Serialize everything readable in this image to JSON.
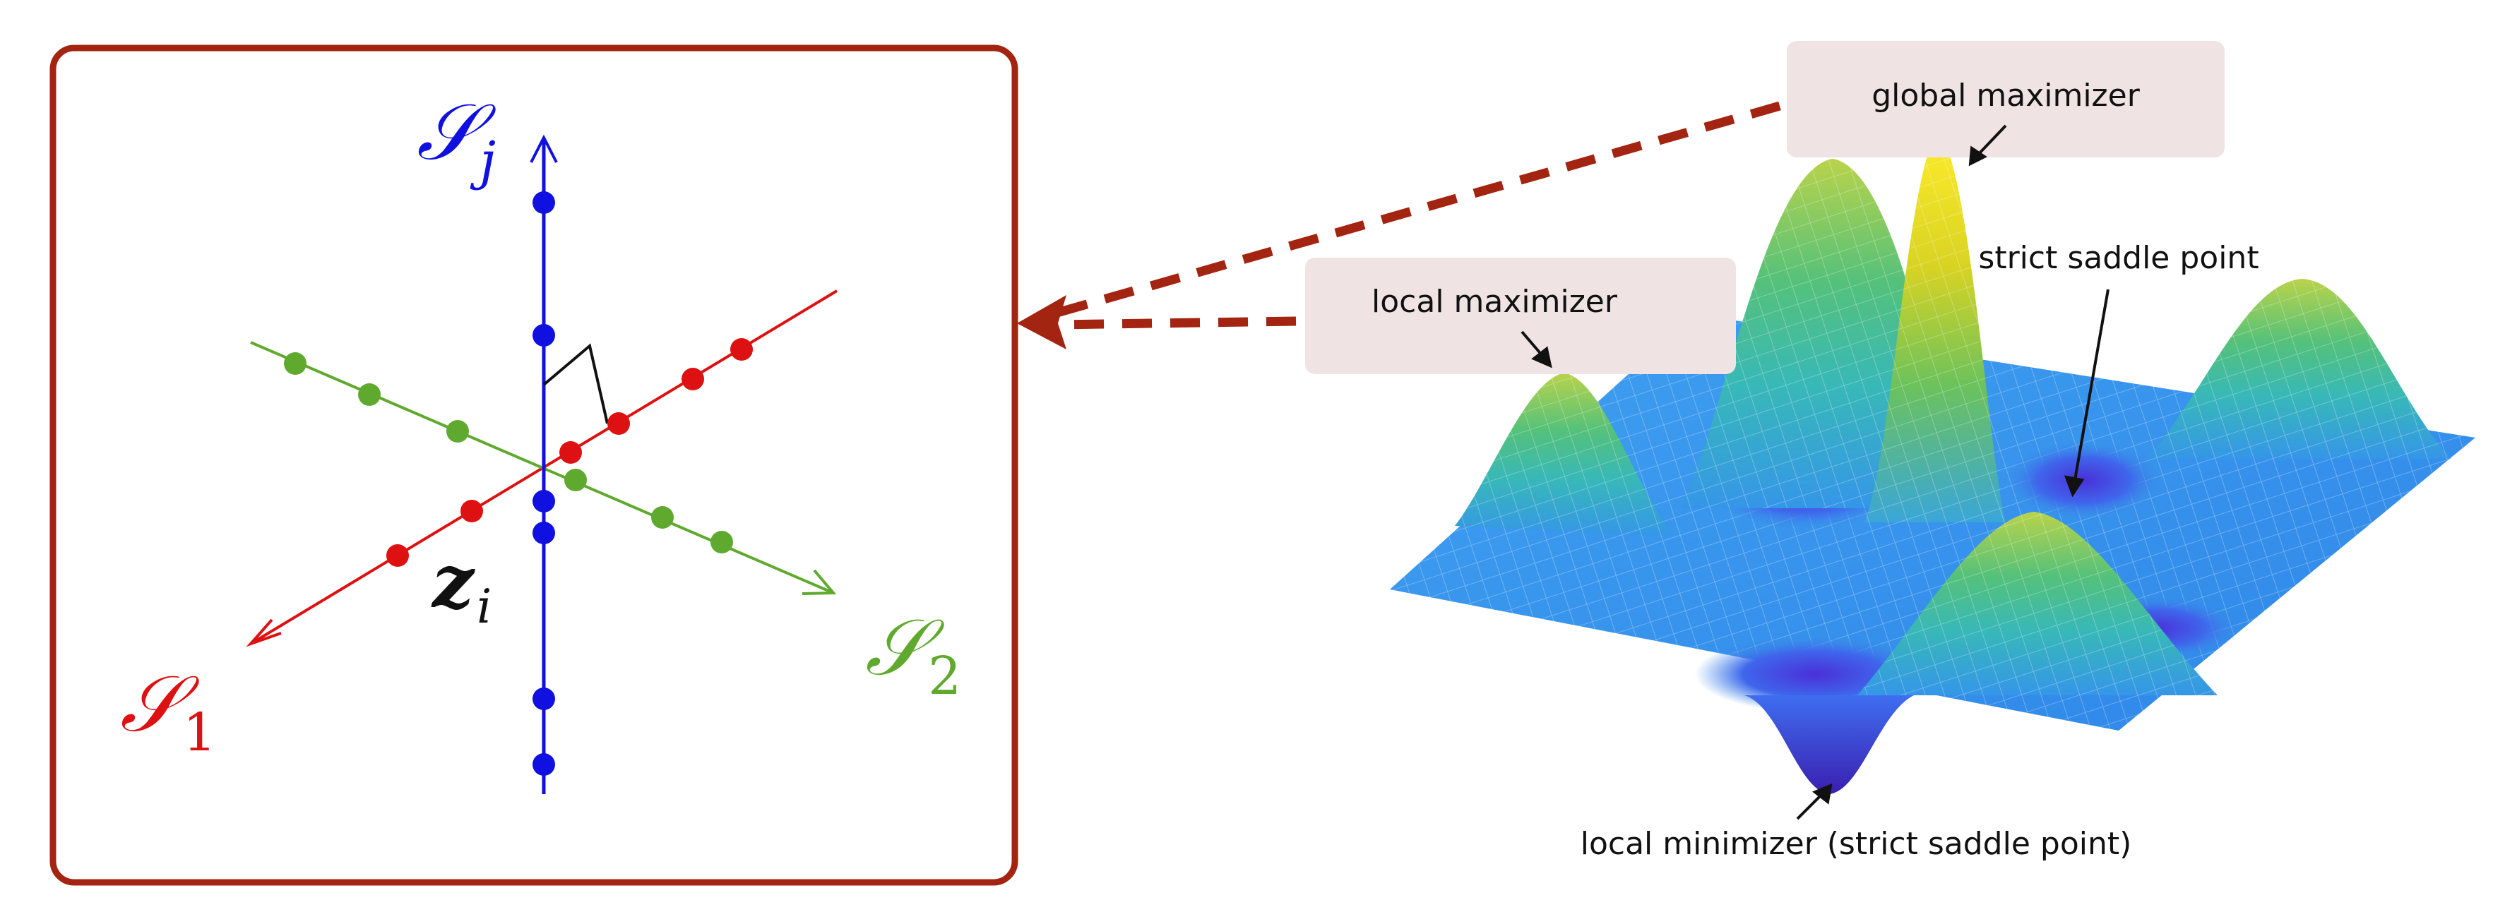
{
  "left_panel": {
    "axes": {
      "sj": {
        "label": "𝒮",
        "sub": "j",
        "color": "#1010e0"
      },
      "s1": {
        "label": "𝒮",
        "sub": "1",
        "color": "#dd1111"
      },
      "s2": {
        "label": "𝒮",
        "sub": "2",
        "color": "#5faa2e"
      }
    },
    "point_label": {
      "label": "z",
      "sub": "i"
    },
    "frame_color": "#a32410"
  },
  "right_panel": {
    "annotations": {
      "global_max": "global maximizer",
      "local_max": "local maximizer",
      "strict_saddle": "strict saddle point",
      "local_min": "local minimizer (strict saddle point)"
    },
    "callout_color": "#efe3e3",
    "arrow_color": "#a32410"
  }
}
